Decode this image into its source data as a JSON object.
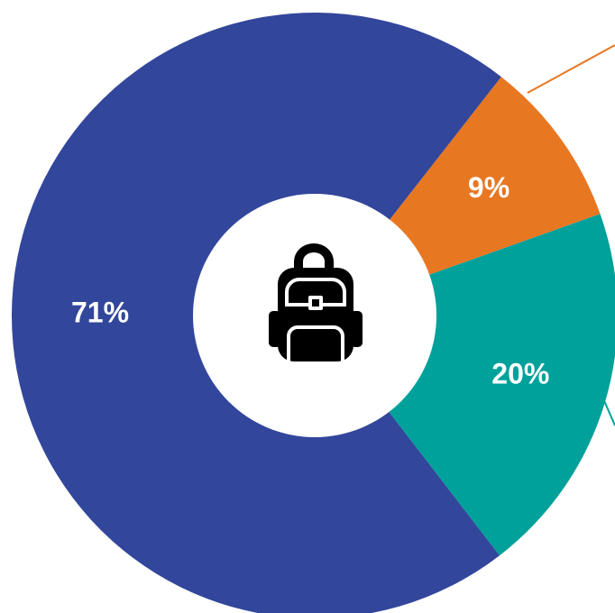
{
  "chart_data": {
    "type": "donut",
    "categories": [
      null,
      null,
      null
    ],
    "values": [
      9,
      20,
      71
    ],
    "value_labels": [
      "9%",
      "20%",
      "71%"
    ],
    "colors": [
      "#e87722",
      "#00a19b",
      "#32469b"
    ]
  }
}
